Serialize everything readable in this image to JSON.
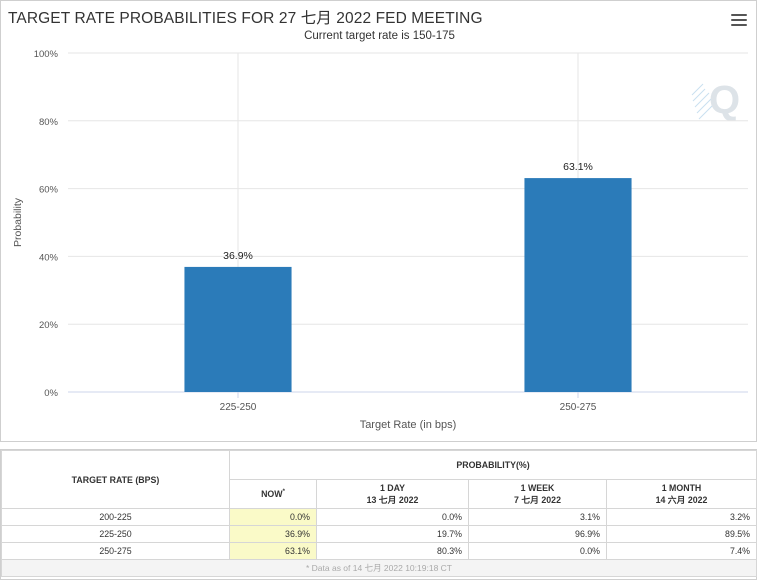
{
  "chart_data": {
    "type": "bar",
    "title": "TARGET RATE PROBABILITIES FOR 27 七月 2022 FED MEETING",
    "subtitle": "Current target rate is 150-175",
    "categories": [
      "225-250",
      "250-275"
    ],
    "values": [
      36.9,
      63.1
    ],
    "data_labels": [
      "36.9%",
      "63.1%"
    ],
    "xlabel": "Target Rate (in bps)",
    "ylabel": "Probability",
    "ylim": [
      0,
      100
    ],
    "yticks": [
      "0%",
      "20%",
      "40%",
      "60%",
      "80%",
      "100%"
    ],
    "ytick_values": [
      0,
      20,
      40,
      60,
      80,
      100
    ],
    "bar_color": "#2b7bb9",
    "grid": true
  },
  "watermark_icon": "cme-q-logo-icon",
  "menu_icon": "hamburger-menu-icon",
  "table": {
    "col_target": "TARGET RATE (BPS)",
    "col_probability": "PROBABILITY(%)",
    "sub_now": "NOW",
    "sub_now_mark": "*",
    "sub_1day_a": "1 DAY",
    "sub_1day_b": "13 七月 2022",
    "sub_1week_a": "1 WEEK",
    "sub_1week_b": "7 七月 2022",
    "sub_1month_a": "1 MONTH",
    "sub_1month_b": "14 六月 2022",
    "rows": [
      {
        "rate": "200-225",
        "now": "0.0%",
        "day": "0.0%",
        "week": "3.1%",
        "month": "3.2%"
      },
      {
        "rate": "225-250",
        "now": "36.9%",
        "day": "19.7%",
        "week": "96.9%",
        "month": "89.5%"
      },
      {
        "rate": "250-275",
        "now": "63.1%",
        "day": "80.3%",
        "week": "0.0%",
        "month": "7.4%"
      }
    ],
    "footnote": "* Data as of 14 七月 2022 10:19:18 CT"
  }
}
